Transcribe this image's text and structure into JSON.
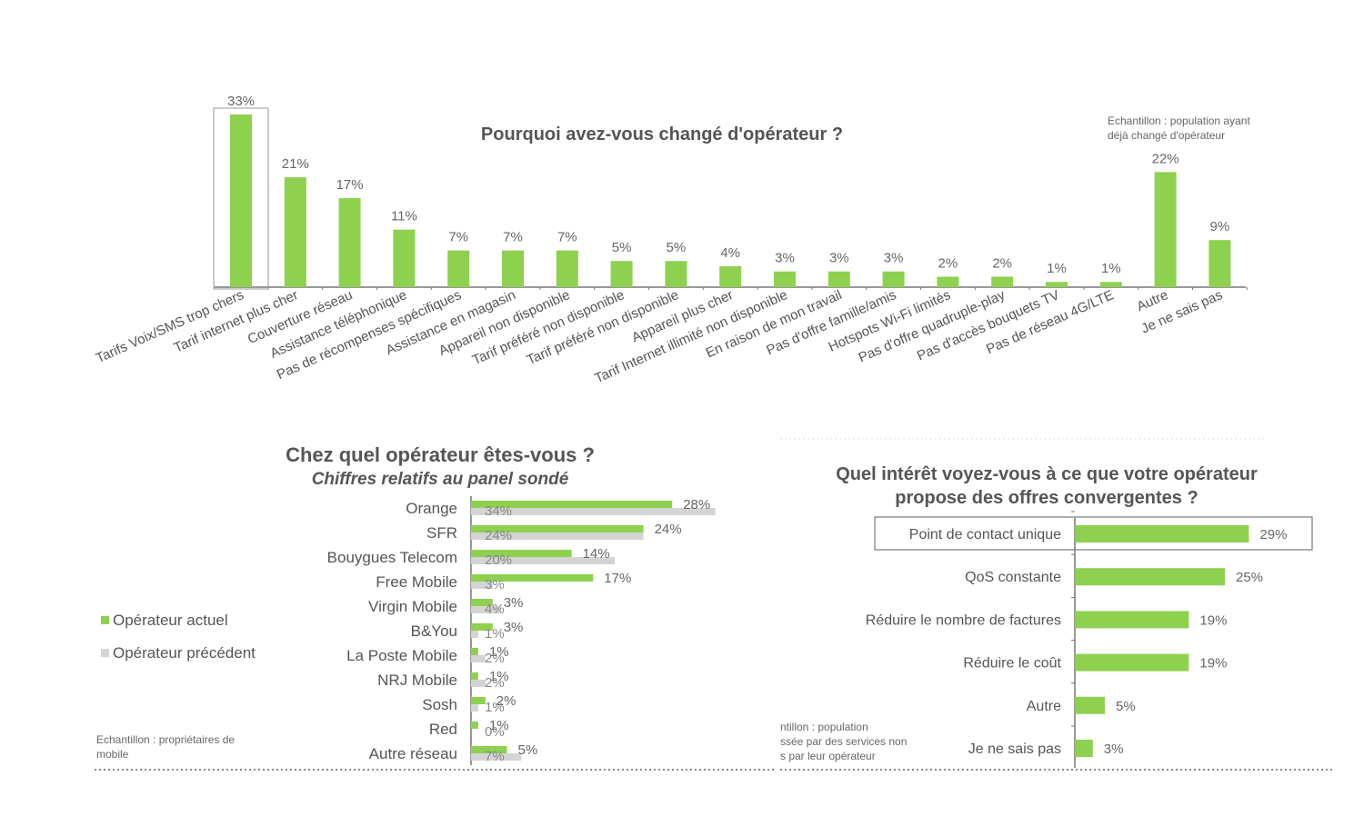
{
  "colors": {
    "green": "#8dd14f",
    "grey": "#d4d4d4",
    "axis": "#777777",
    "text": "#555555"
  },
  "chart_data": [
    {
      "type": "bar",
      "title": "Pourquoi avez-vous changé d'opérateur ?",
      "note": [
        "Echantillon : population ayant",
        "déjà changé d'opérateur"
      ],
      "categories": [
        "Tarifs Voix/SMS trop chers",
        "Tarif internet plus cher",
        "Couverture réseau",
        "Assistance téléphonique",
        "Pas de récompenses spécifiques",
        "Assistance en magasin",
        "Appareil non disponible",
        "Tarif préféré non disponible",
        "Tarif préféré non disponible",
        "Appareil plus cher",
        "Tarif Internet illimité non disponible",
        "En raison de mon travail",
        "Pas d'offre famille/amis",
        "Hotspots Wi-Fi limités",
        "Pas d'offre quadruple-play",
        "Pas d'accès bouquets TV",
        "Pas de réseau 4G/LTE",
        "Autre",
        "Je ne sais pas"
      ],
      "values": [
        33,
        21,
        17,
        11,
        7,
        7,
        7,
        5,
        5,
        4,
        3,
        3,
        3,
        2,
        2,
        1,
        1,
        22,
        9
      ],
      "labels": [
        "33%",
        "21%",
        "17%",
        "11%",
        "7%",
        "7%",
        "7%",
        "5%",
        "5%",
        "4%",
        "3%",
        "3%",
        "3%",
        "2%",
        "2%",
        "1%",
        "1%",
        "22%",
        "9%"
      ],
      "highlight_index": 0
    },
    {
      "type": "bar",
      "orientation": "horizontal",
      "title": "Chez quel opérateur êtes-vous ?",
      "subtitle": "Chiffres relatifs au panel sondé",
      "note": [
        "Echantillon : propriétaires de",
        "mobile"
      ],
      "categories": [
        "Orange",
        "SFR",
        "Bouygues Telecom",
        "Free Mobile",
        "Virgin Mobile",
        "B&You",
        "La Poste Mobile",
        "NRJ Mobile",
        "Sosh",
        "Red",
        "Autre réseau"
      ],
      "series": [
        {
          "name": "Opérateur actuel",
          "values": [
            28,
            24,
            14,
            17,
            3,
            3,
            1,
            1,
            2,
            1,
            5
          ],
          "labels": [
            "28%",
            "24%",
            "14%",
            "17%",
            "3%",
            "3%",
            "1%",
            "1%",
            "2%",
            "1%",
            "5%"
          ]
        },
        {
          "name": "Opérateur précédent",
          "values": [
            34,
            24,
            20,
            3,
            4,
            1,
            2,
            2,
            1,
            0,
            7
          ],
          "labels": [
            "34%",
            "24%",
            "20%",
            "3%",
            "4%",
            "1%",
            "2%",
            "2%",
            "1%",
            "0%",
            "7%"
          ]
        }
      ],
      "legend": "left"
    },
    {
      "type": "bar",
      "orientation": "horizontal",
      "title": [
        "Quel intérêt voyez-vous à ce que votre opérateur",
        "propose des offres convergentes ?"
      ],
      "note": [
        "ntillon : population",
        "ssée par des services non",
        "s par leur opérateur"
      ],
      "categories": [
        "Point de contact unique",
        "QoS constante",
        "Réduire le nombre de factures",
        "Réduire le coût",
        "Autre",
        "Je ne sais pas"
      ],
      "values": [
        29,
        25,
        19,
        19,
        5,
        3
      ],
      "labels": [
        "29%",
        "25%",
        "19%",
        "19%",
        "5%",
        "3%"
      ],
      "highlight_index": 0
    }
  ]
}
